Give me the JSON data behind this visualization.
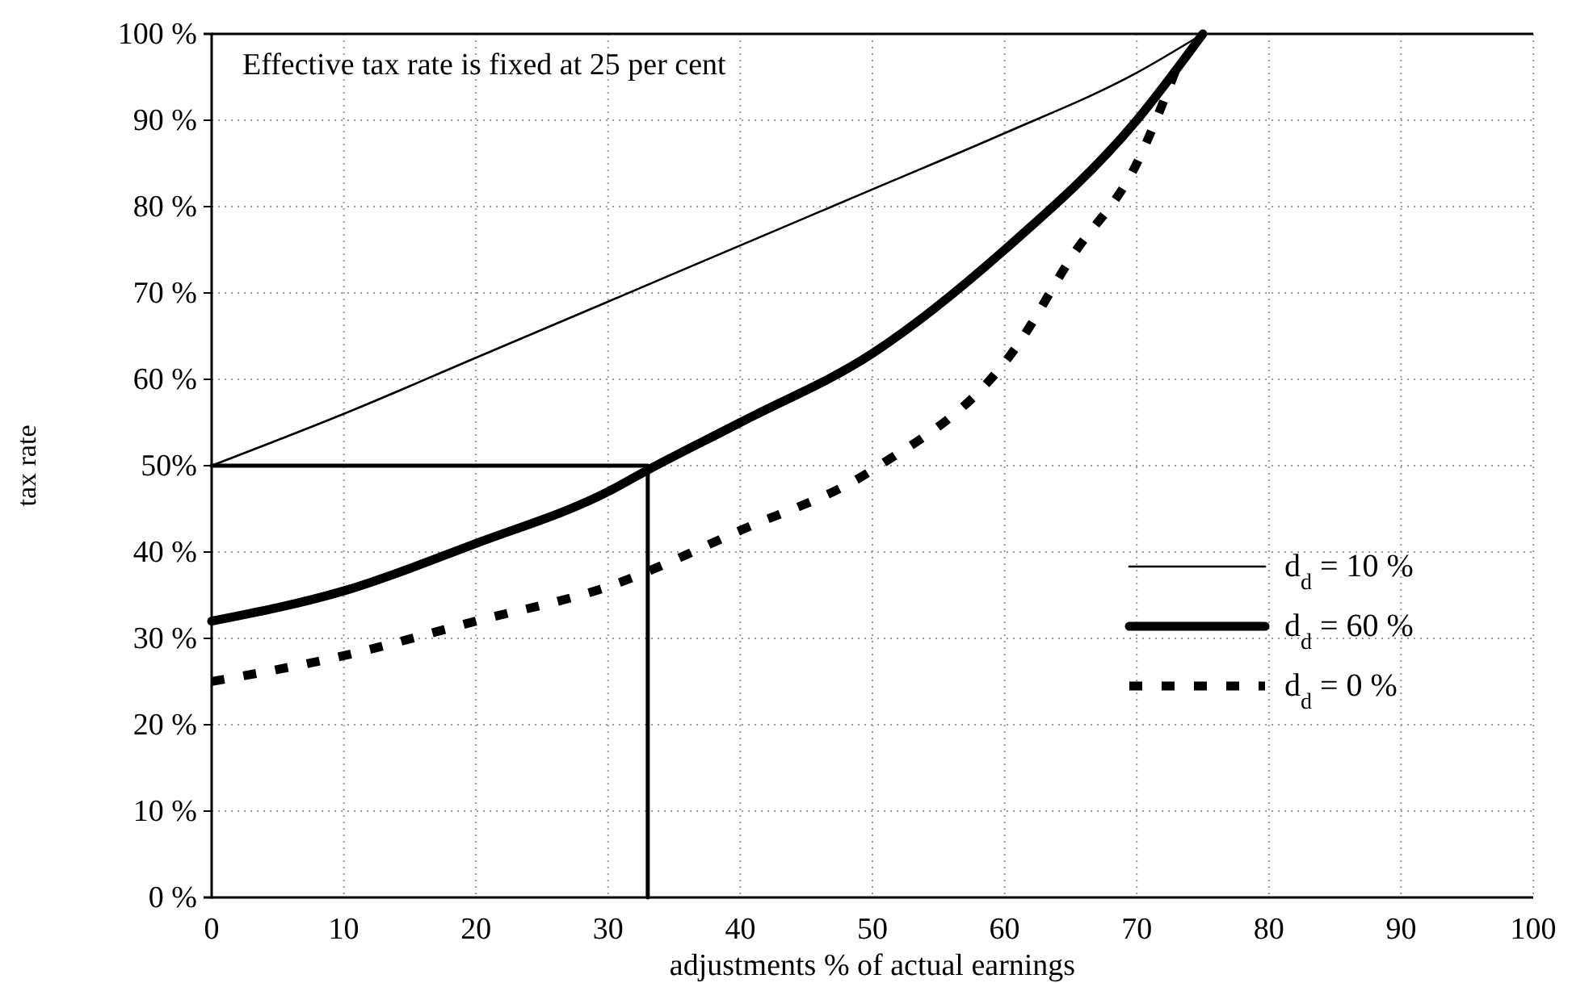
{
  "chart_data": {
    "type": "line",
    "annotations": [
      {
        "text": "Effective tax rate is fixed at 25 per cent"
      }
    ],
    "xlabel": "adjustments % of actual earnings",
    "ylabel": "tax rate",
    "xlim": [
      0,
      100
    ],
    "xticks": [
      0,
      10,
      20,
      30,
      40,
      50,
      60,
      70,
      80,
      90,
      100
    ],
    "ylim": [
      0,
      100
    ],
    "yticks": [
      {
        "value": 0,
        "label": "0 %"
      },
      {
        "value": 10,
        "label": "10 %"
      },
      {
        "value": 20,
        "label": "20 %"
      },
      {
        "value": 30,
        "label": "30 %"
      },
      {
        "value": 40,
        "label": "40 %"
      },
      {
        "value": 50,
        "label": "50%"
      },
      {
        "value": 60,
        "label": "60 %"
      },
      {
        "value": 70,
        "label": "70 %"
      },
      {
        "value": 80,
        "label": "80 %"
      },
      {
        "value": 90,
        "label": "90 %"
      },
      {
        "value": 100,
        "label": "100 %"
      }
    ],
    "grid": true,
    "legend": "bottom right",
    "marker": "none",
    "series": [
      {
        "name": "d$_{d}$ = 10 %",
        "color": "#000000",
        "line_style": "solid",
        "x": [
          0,
          10,
          20,
          30,
          40,
          50,
          60,
          70,
          75
        ],
        "values": [
          50,
          56,
          62.5,
          69,
          75.5,
          82,
          88.5,
          95.5,
          100
        ]
      },
      {
        "name": "d$_{d}$ = 60 %",
        "color": "#000000",
        "line_style": "solid",
        "x": [
          0,
          10,
          20,
          30,
          33,
          40,
          50,
          60,
          70,
          75
        ],
        "values": [
          32,
          35.5,
          41,
          47,
          49.5,
          55,
          63,
          75,
          90,
          100
        ]
      },
      {
        "name": "d$_{d}$ = 0 %",
        "color": "#000000",
        "line_style": "dashed",
        "x": [
          0,
          10,
          20,
          30,
          40,
          50,
          61,
          65,
          70,
          73
        ],
        "values": [
          25,
          28,
          32,
          36,
          42.5,
          49.5,
          64,
          74,
          85,
          96
        ]
      },
      {
        "color": "#000000",
        "line_style": "solid",
        "x": [
          0,
          33,
          33
        ],
        "values": [
          50,
          50,
          0
        ]
      }
    ]
  }
}
